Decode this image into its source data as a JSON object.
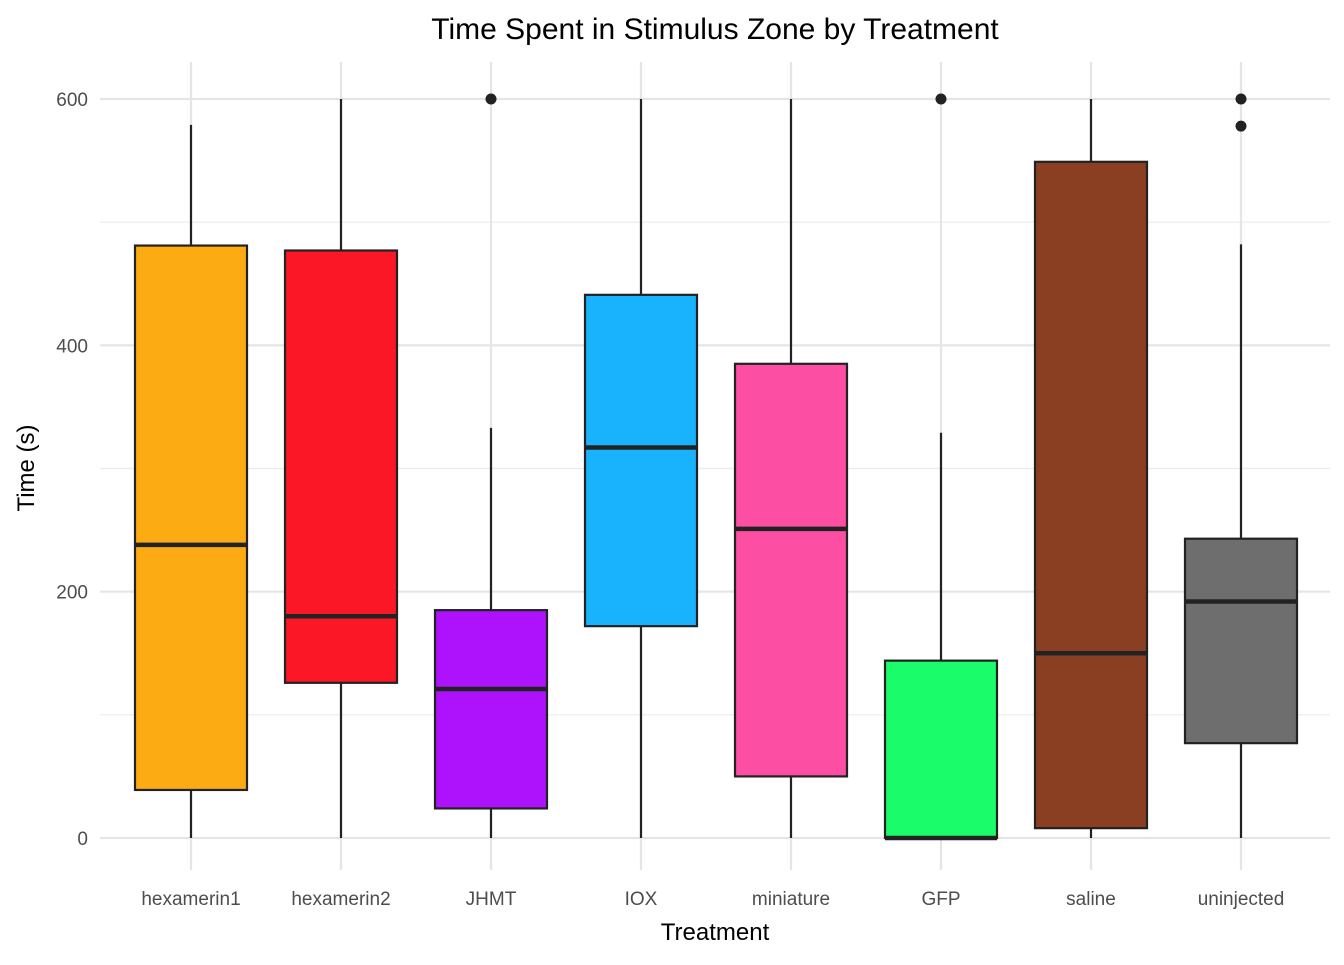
{
  "chart_data": {
    "type": "boxplot",
    "title": "Time Spent in Stimulus Zone by Treatment",
    "xlabel": "Treatment",
    "ylabel": "Time (s)",
    "ylim": [
      -25,
      625
    ],
    "yticks": [
      0,
      200,
      400,
      600
    ],
    "minor_gridlines": [
      100,
      300,
      500
    ],
    "grid": true,
    "legend": "none",
    "categories": [
      "hexamerin1",
      "hexamerin2",
      "JHMT",
      "IOX",
      "miniature",
      "GFP",
      "saline",
      "uninjected"
    ],
    "boxes": [
      {
        "category": "hexamerin1",
        "whisker_low": 0,
        "q1": 39,
        "median": 238,
        "q3": 481,
        "whisker_high": 579,
        "outliers": [],
        "color": "#FCAC12"
      },
      {
        "category": "hexamerin2",
        "whisker_low": 0,
        "q1": 126,
        "median": 180,
        "q3": 477,
        "whisker_high": 600,
        "outliers": [],
        "color": "#FC1726"
      },
      {
        "category": "JHMT",
        "whisker_low": 0,
        "q1": 24,
        "median": 121,
        "q3": 185,
        "whisker_high": 333,
        "outliers": [
          600
        ],
        "color": "#AE12FC"
      },
      {
        "category": "IOX",
        "whisker_low": 0,
        "q1": 172,
        "median": 317,
        "q3": 441,
        "whisker_high": 600,
        "outliers": [],
        "color": "#19B2FC"
      },
      {
        "category": "miniature",
        "whisker_low": 0,
        "q1": 50,
        "median": 251,
        "q3": 385,
        "whisker_high": 600,
        "outliers": [],
        "color": "#FC4FA4"
      },
      {
        "category": "GFP",
        "whisker_low": 0,
        "q1": 0,
        "median": 0,
        "q3": 144,
        "whisker_high": 329,
        "outliers": [
          600
        ],
        "color": "#1BFC6A"
      },
      {
        "category": "saline",
        "whisker_low": 0,
        "q1": 8,
        "median": 150,
        "q3": 549,
        "whisker_high": 600,
        "outliers": [],
        "color": "#8B3F22"
      },
      {
        "category": "uninjected",
        "whisker_low": 0,
        "q1": 77,
        "median": 192,
        "q3": 243,
        "whisker_high": 482,
        "outliers": [
          600,
          578
        ],
        "color": "#6E6E6E"
      }
    ]
  }
}
